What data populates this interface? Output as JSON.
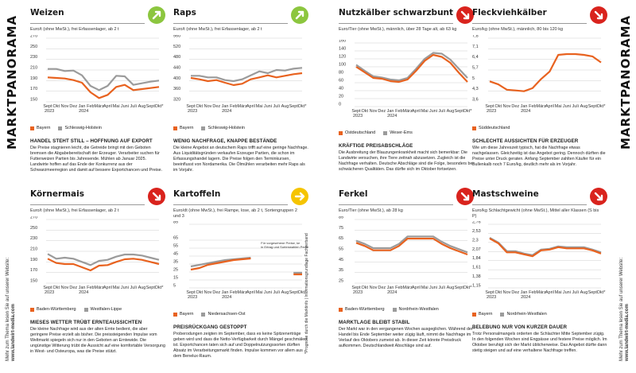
{
  "side_title": "MARKTPANORAMA",
  "side_note_left": "Mehr zum Thema lesen Sie auf unserer Website:",
  "side_note_left_url": "www.landwirt-media.com",
  "side_note_right": "Mehr zum Thema lesen Sie auf unserer Website:",
  "side_note_right_url": "www.landwirt-media.com",
  "forecast_note": "*Prognose durch die Marktinfo | Informationsgrundlage Fachverband",
  "colors": {
    "orange": "#e8621f",
    "gray": "#9b9b9b",
    "green": "#8cc63f",
    "red": "#d9231d",
    "yellow": "#f5c400"
  },
  "panels": [
    {
      "id": "weizen",
      "title": "Weizen",
      "trend": "up",
      "trend_color": "#8cc63f",
      "unit": "Euro/t (ohne MwSt.), frei Erfassenlager, ab 2 t",
      "legend": [
        "Bayern",
        "Schleswig-Holstein"
      ],
      "headline": "HANDEL STEHT STILL – HOFFNUNG AUF EXPORT",
      "body": "Die Preise stagnieren leicht, die Getreide bringt mit den Geboten bremsen die Abgabebereitschaft der Erzeuger. Verarbeiter suchen für Futterweizen Partien bis Jahresende. Mühlen ab Januar 2025. Landwirte hoffen auf das Ende der Konkurrenz aus der Schwarzmeerregion und damit auf bessere Exportchancen und Preise.",
      "chart_data": {
        "type": "line",
        "x": [
          "Sept 2023",
          "Okt",
          "Nov",
          "Dez",
          "Jan 2024",
          "Feb",
          "März",
          "April",
          "Mai",
          "Juni",
          "Juli",
          "Aug",
          "Sept",
          "Okt*"
        ],
        "yticks": [
          150,
          170,
          190,
          210,
          230,
          250,
          270
        ],
        "ylim": [
          150,
          270
        ],
        "series": [
          {
            "name": "Bayern",
            "color": "#e8621f",
            "values": [
              196,
              195,
              194,
              191,
              186,
              168,
              157,
              163,
              178,
              182,
              172,
              174,
              176,
              178
            ]
          },
          {
            "name": "Schleswig-Holstein",
            "color": "#9b9b9b",
            "values": [
              212,
              212,
              208,
              209,
              200,
              180,
              172,
              180,
              199,
              198,
              182,
              185,
              188,
              190
            ]
          }
        ]
      }
    },
    {
      "id": "raps",
      "title": "Raps",
      "trend": "up",
      "trend_color": "#8cc63f",
      "unit": "Euro/t (ohne MwSt.), frei Erfassenlager, ab 2 t",
      "legend": [
        "Bayern",
        "Schleswig-Holstein"
      ],
      "headline": "WENIG NACHFRAGE, KNAPPE BESTÄNDE",
      "body": "Die kleine Angebot an deutschem Raps trifft auf eine geringe Nachfrage. Aus Liquiditätsgründen verkaufen Erzeuger Partien, die schon im Erfassungshandel lagern. Die Preise folgen den Terminkursen, beeinflusst von Nordamerika. Die Ölmühlen verarbeiten mehr Raps als im Vorjahr.",
      "chart_data": {
        "type": "line",
        "x": [
          "Sept 2023",
          "Okt",
          "Nov",
          "Dez",
          "Jan 2024",
          "Feb",
          "März",
          "April",
          "Mai",
          "Juni",
          "Juli",
          "Aug",
          "Sept",
          "Okt*"
        ],
        "yticks": [
          320,
          360,
          400,
          440,
          480,
          520,
          560
        ],
        "ylim": [
          320,
          560
        ],
        "series": [
          {
            "name": "Bayern",
            "color": "#e8621f",
            "values": [
              410,
              405,
              398,
              402,
              392,
              383,
              388,
              405,
              412,
              420,
              412,
              418,
              424,
              428
            ]
          },
          {
            "name": "Schleswig-Holstein",
            "color": "#9b9b9b",
            "values": [
              418,
              418,
              412,
              412,
              402,
              398,
              405,
              420,
              435,
              428,
              440,
              438,
              445,
              448
            ]
          }
        ]
      }
    },
    {
      "id": "koernermais",
      "title": "Körnermais",
      "trend": "down",
      "trend_color": "#d9231d",
      "unit": "Euro/t (ohne MwSt.), frei Erfassenlager, ab 2 t",
      "legend": [
        "Baden-Württemberg",
        "Westfalen-Lippe"
      ],
      "headline": "MIESES WETTER TRÜBT ERNTEAUSSICHTEN",
      "body": "Die kleine Nachfrage wird aus der alten Ernte bedient, die aber geringere Preise erzielt als bisher. Die preissteigenden Impulse vom Weltmarkt spiegeln sich nur in den Geboten an Erntewide. Die ungünstige Witterung trübt die Aussicht auf eine komfortable Versorgung in West- und Osteuropa, was die Preise stützt.",
      "chart_data": {
        "type": "line",
        "x": [
          "Sept 2023",
          "Okt",
          "Nov",
          "Dez",
          "Jan 2024",
          "Feb",
          "März",
          "April",
          "Mai",
          "Juni",
          "Juli",
          "Aug",
          "Sept",
          "Okt*"
        ],
        "yticks": [
          150,
          170,
          190,
          210,
          230,
          250,
          270
        ],
        "ylim": [
          150,
          270
        ],
        "series": [
          {
            "name": "Baden-Württemberg",
            "color": "#e8621f",
            "values": [
              196,
              188,
              186,
              186,
              180,
              174,
              183,
              184,
              190,
              195,
              196,
              194,
              190,
              186
            ]
          },
          {
            "name": "Westfalen-Lippe",
            "color": "#9b9b9b",
            "values": [
              205,
              196,
              198,
              196,
              190,
              184,
              192,
              194,
              200,
              204,
              204,
              202,
              198,
              194
            ]
          }
        ]
      }
    },
    {
      "id": "kartoffeln",
      "title": "Kartoffeln",
      "trend": "right",
      "trend_color": "#f5c400",
      "unit": "Euro/dt (ohne MwSt.), frei Rampe, lose, ab 2 t, Sortengruppen 2 und 3",
      "legend": [
        "Bayern",
        "Niedersachsen-Ost"
      ],
      "note": "Für vorgesehene Preise, kein Ertrag und Sortenwahlen Partien",
      "headline": "PREISRÜCKGANG GESTOPPT",
      "body": "Proberodungen zeigten im September, dass es keine Spitzenerträge geben wird und dass die Netto-Verfügbarkeit durch Mängel geschmälert ist. Exportchancen taten sich auf und Doppelnutzungssorten dürften Absatz im Verarbeitungsmarkt finden. Impulse kommen vor allem aus dem Benelux-Raum.",
      "chart_data": {
        "type": "line",
        "x": [
          "Sept 2023",
          "Okt",
          "Nov",
          "Dez",
          "Jan 2024",
          "Feb",
          "März",
          "April",
          "Mai",
          "Juni",
          "Juli",
          "Aug",
          "Sept",
          "Okt*"
        ],
        "yticks": [
          5,
          15,
          25,
          35,
          45,
          55,
          65,
          85
        ],
        "ylim": [
          5,
          85
        ],
        "series": [
          {
            "name": "Bayern",
            "color": "#e8621f",
            "values": [
              28,
              30,
              34,
              36,
              38,
              40,
              41,
              42,
              null,
              null,
              null,
              null,
              22,
              22
            ]
          },
          {
            "name": "Niedersachsen-Ost",
            "color": "#9b9b9b",
            "values": [
              32,
              34,
              36,
              38,
              40,
              41,
              42,
              43,
              null,
              null,
              null,
              null,
              24,
              24
            ]
          }
        ]
      }
    },
    {
      "id": "nutzkaelber",
      "title": "Nutzkälber schwarzbunt",
      "trend": "down",
      "trend_color": "#d9231d",
      "unit": "Euro/Tier (ohne MwSt.), männlich, über 28 Tage alt, ab 63 kg",
      "legend": [
        "Ostdeutschland",
        "Weser-Ems"
      ],
      "headline": "KRÄFTIGE PREISABSCHLÄGE",
      "body": "Die Ausbreitung der Blauzungenkrankheit macht sich bemerkbar: Die Landwirte versuchen, ihre Tiere zeitnah abzusetzen. Zugleich ist die Nachfrage verhalten. Deutsche Abschläge sind die Folge, besonders bei schwächeren Qualitäten. Das dürfte sich im Oktober fortsetzen.",
      "chart_data": {
        "type": "line",
        "x": [
          "Sept 2023",
          "Okt",
          "Nov",
          "Dez",
          "Jan 2024",
          "Feb",
          "März",
          "April",
          "Mai",
          "Juni",
          "Juli",
          "Aug",
          "Sept",
          "Okt*"
        ],
        "yticks": [
          0,
          20,
          40,
          60,
          80,
          100,
          120,
          140,
          160
        ],
        "ylim": [
          0,
          160
        ],
        "series": [
          {
            "name": "Ostdeutschland",
            "color": "#e8621f",
            "values": [
              100,
              86,
              72,
              70,
              64,
              62,
              68,
              90,
              115,
              130,
              125,
              110,
              85,
              62
            ]
          },
          {
            "name": "Weser-Ems",
            "color": "#9b9b9b",
            "values": [
              105,
              90,
              76,
              73,
              68,
              66,
              72,
              95,
              120,
              135,
              133,
              118,
              95,
              72
            ]
          }
        ]
      }
    },
    {
      "id": "fleckvieh",
      "title": "Fleckviehkälber",
      "trend": "down",
      "trend_color": "#d9231d",
      "unit": "Euro/kg (ohne MwSt.), männlich, 80 bis 120 kg",
      "legend": [
        "Süddeutschland"
      ],
      "headline": "SCHLECHTE AUSSICHTEN FÜR ERZEUGER",
      "body": "Wie um diese Jahreszeit typisch, hat die Nachfrage etwas nachgelassen. Gleichzeitig ist das Angebot gering. Dennoch dürften die Preise unter Druck geraten. Anfang September zahlten Käufer für ein Bullenkalb noch 7 Euro/kg, deutlich mehr als im Vorjahr.",
      "chart_data": {
        "type": "line",
        "x": [
          "Sept 2023",
          "Okt",
          "Nov",
          "Dez",
          "Jan 2024",
          "Feb",
          "März",
          "April",
          "Mai",
          "Juni",
          "Juli",
          "Aug",
          "Sept",
          "Okt*"
        ],
        "yticks": [
          3.6,
          4.3,
          5,
          5.7,
          6.4,
          7.1,
          7.8
        ],
        "ylim": [
          3.6,
          7.8
        ],
        "series": [
          {
            "name": "Süddeutschland",
            "color": "#e8621f",
            "values": [
              4.95,
              4.75,
              4.4,
              4.35,
              4.3,
              4.5,
              5.1,
              5.6,
              6.7,
              6.75,
              6.75,
              6.7,
              6.6,
              6.2
            ]
          }
        ]
      }
    },
    {
      "id": "ferkel",
      "title": "Ferkel",
      "trend": "down",
      "trend_color": "#d9231d",
      "unit": "Euro/Tier (ohne MwSt.), ab 28 kg",
      "legend": [
        "Baden-Württemberg",
        "Nordrhein-Westfalen"
      ],
      "headline": "MARKTLAGE BLEIBT STABIL",
      "body": "Der Markt war in den vergangenen Wochen ausgeglichen. Während der Handel bis Ende September weiter zügig läuft, nimmt die Nachfrage im Verlauf des Oktobers zumeist ab. In dieser Zeit könnte Preisdruck aufkommen. Deutschlandweit Abschläge sind auf.",
      "chart_data": {
        "type": "line",
        "x": [
          "Sept 2023",
          "Okt",
          "Nov",
          "Dez",
          "Jan 2024",
          "Feb",
          "März",
          "April",
          "Mai",
          "Juni",
          "Juli",
          "Aug",
          "Sept",
          "Okt*"
        ],
        "yticks": [
          25,
          35,
          45,
          55,
          65,
          75,
          85
        ],
        "ylim": [
          25,
          85
        ],
        "series": [
          {
            "name": "Baden-Württemberg",
            "color": "#e8621f",
            "values": [
              63,
              60,
              56,
              56,
              56,
              60,
              67,
              67,
              67,
              67,
              62,
              58,
              55,
              52
            ]
          },
          {
            "name": "Nordrhein-Westfalen",
            "color": "#9b9b9b",
            "values": [
              65,
              62,
              58,
              58,
              58,
              62,
              69,
              69,
              69,
              69,
              64,
              60,
              57,
              54
            ]
          }
        ]
      }
    },
    {
      "id": "mastschweine",
      "title": "Mastschweine",
      "trend": "down",
      "trend_color": "#d9231d",
      "unit": "Euro/kg Schlachtgewicht (ohne MwSt.), Mittel aller Klassen (S bis P)",
      "legend": [
        "Bayern",
        "Nordrhein-Westfalen"
      ],
      "headline": "BELEBUNG NUR VON KURZER DAUER",
      "body": "Trotz Personalmangels orderten die Schlachter Mitte September zügig. In den folgenden Wochen sind Engpässe und festere Preise möglich. Im Oktober beruhigt sich der Markt üblicherweise. Das Angebot dürfte dann stetig steigen und auf eine verhaltene Nachfrage treffen.",
      "chart_data": {
        "type": "line",
        "x": [
          "Sept 2023",
          "Okt",
          "Nov",
          "Dez",
          "Jan 2024",
          "Feb",
          "März",
          "April",
          "Mai",
          "Juni",
          "Juli",
          "Aug",
          "Sept",
          "Okt*"
        ],
        "yticks": [
          1.15,
          1.38,
          1.61,
          1.84,
          2.07,
          2.3,
          2.53,
          2.76
        ],
        "ylim": [
          1.15,
          2.76
        ],
        "series": [
          {
            "name": "Bayern",
            "color": "#e8621f",
            "values": [
              2.4,
              2.28,
              2.05,
              2.05,
              2.0,
              1.95,
              2.1,
              2.12,
              2.18,
              2.15,
              2.15,
              2.15,
              2.1,
              2.02
            ]
          },
          {
            "name": "Nordrhein-Westfalen",
            "color": "#9b9b9b",
            "values": [
              2.42,
              2.3,
              2.08,
              2.08,
              2.02,
              1.98,
              2.12,
              2.14,
              2.2,
              2.18,
              2.18,
              2.18,
              2.12,
              2.05
            ]
          }
        ]
      }
    }
  ]
}
